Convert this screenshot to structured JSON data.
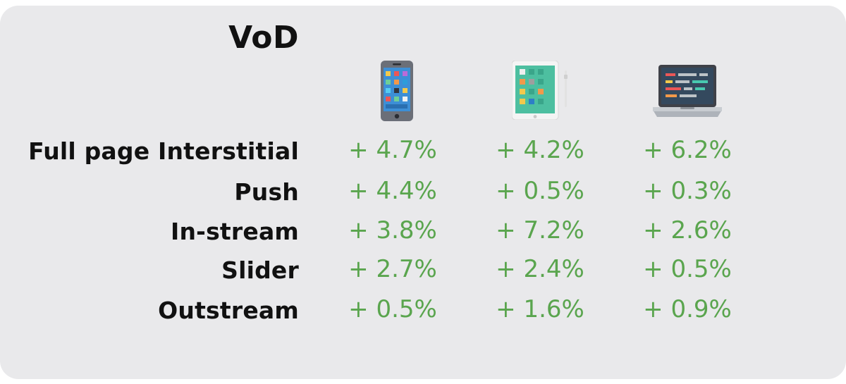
{
  "title": "VoD",
  "columns": [
    {
      "device": "smartphone",
      "icon": "smartphone-icon"
    },
    {
      "device": "tablet",
      "icon": "tablet-icon"
    },
    {
      "device": "laptop",
      "icon": "laptop-icon"
    }
  ],
  "rows": [
    {
      "label": "Full page Interstitial",
      "values": [
        "+ 4.7%",
        "+ 4.2%",
        "+ 6.2%"
      ]
    },
    {
      "label": "Push",
      "values": [
        "+ 4.4%",
        "+ 0.5%",
        "+ 0.3%"
      ]
    },
    {
      "label": "In-stream",
      "values": [
        "+ 3.8%",
        "+ 7.2%",
        "+ 2.6%"
      ]
    },
    {
      "label": "Slider",
      "values": [
        "+ 2.7%",
        "+ 2.4%",
        "+ 0.5%"
      ]
    },
    {
      "label": "Outstream",
      "values": [
        "+ 0.5%",
        "+ 1.6%",
        "+ 0.9%"
      ]
    }
  ],
  "colors": {
    "value": "#5aa54e",
    "background": "#e9e9eb",
    "label": "#111111"
  }
}
